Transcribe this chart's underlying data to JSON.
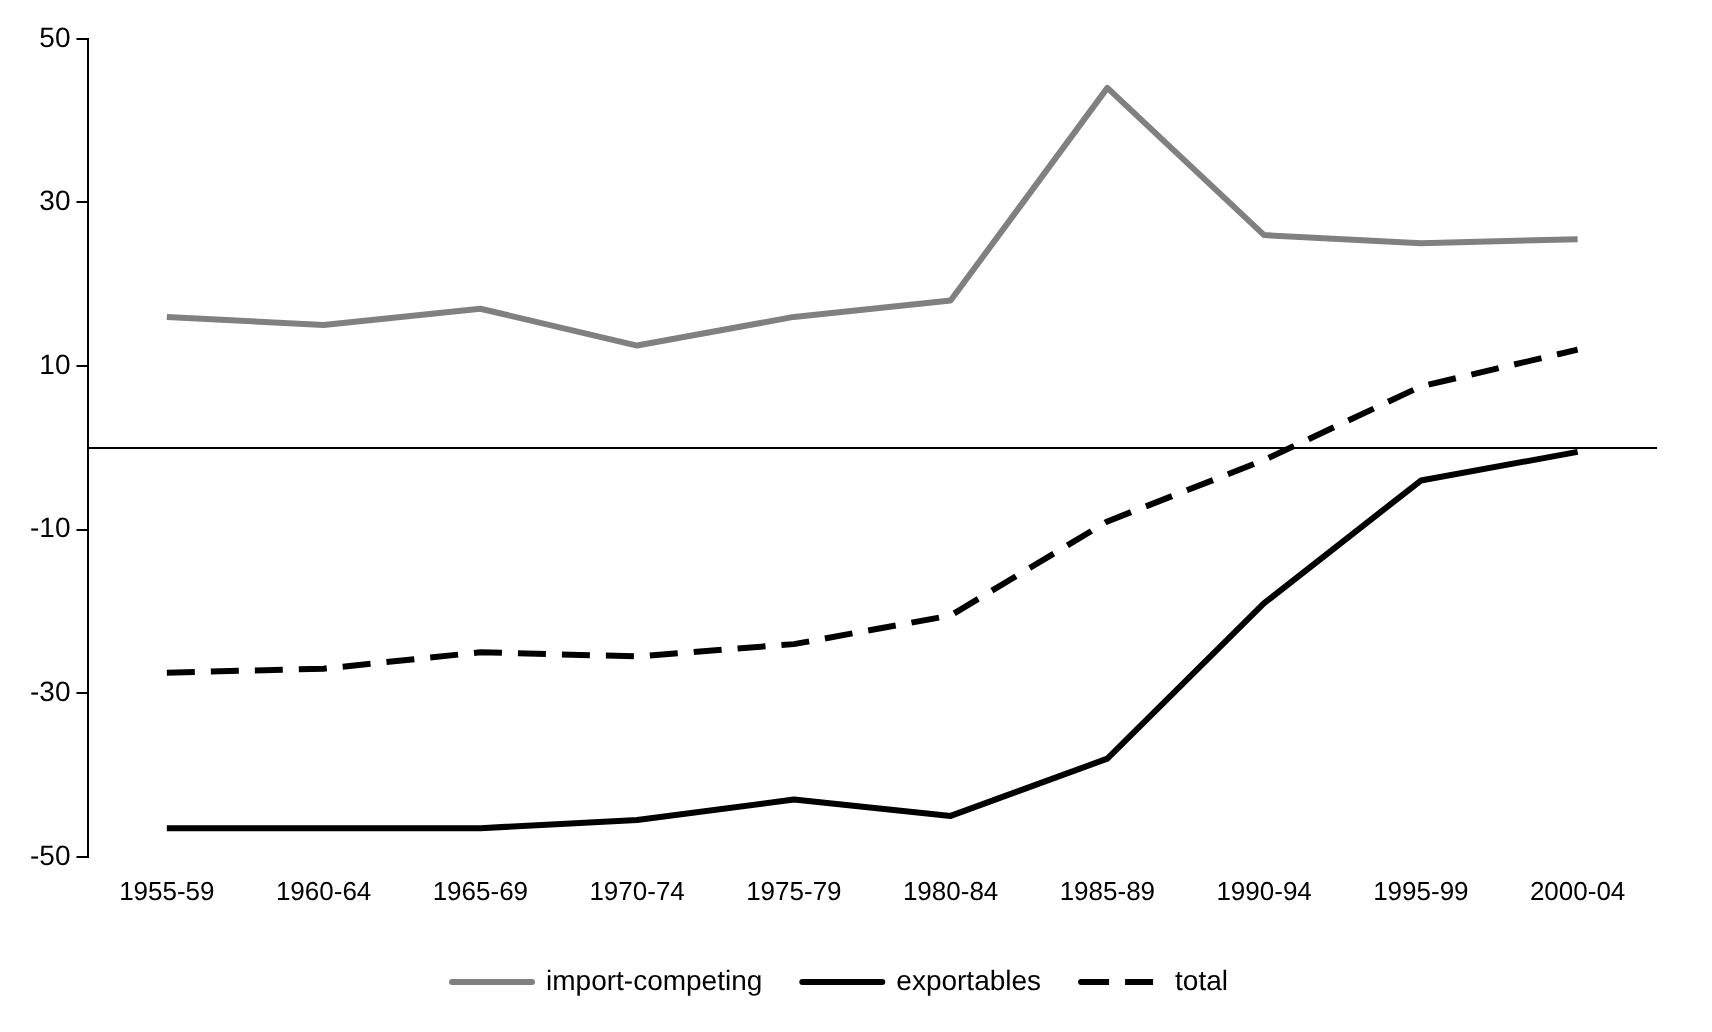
{
  "chart_data": {
    "type": "line",
    "categories": [
      "1955-59",
      "1960-64",
      "1965-69",
      "1970-74",
      "1975-79",
      "1980-84",
      "1985-89",
      "1990-94",
      "1995-99",
      "2000-04"
    ],
    "series": [
      {
        "name": "import-competing",
        "color": "#808080",
        "values": [
          16,
          15,
          17,
          12.5,
          16,
          18,
          44,
          26,
          25,
          25.5
        ]
      },
      {
        "name": "exportables",
        "color": "#000000",
        "values": [
          -46.5,
          -46.5,
          -46.5,
          -45.5,
          -43,
          -45,
          -38,
          -19,
          -4,
          -0.5
        ]
      },
      {
        "name": "total",
        "color": "#000000",
        "line_style": "dashed",
        "values": [
          -27.5,
          -27,
          -25,
          -25.5,
          -24,
          -20.5,
          -9,
          -1.5,
          7.5,
          12
        ]
      }
    ],
    "ylim": [
      -50,
      50
    ],
    "yticks": [
      -50,
      -30,
      -10,
      10,
      30,
      50
    ],
    "grid": false,
    "legend": "bottom",
    "marker": "none",
    "line_style": "solid"
  }
}
